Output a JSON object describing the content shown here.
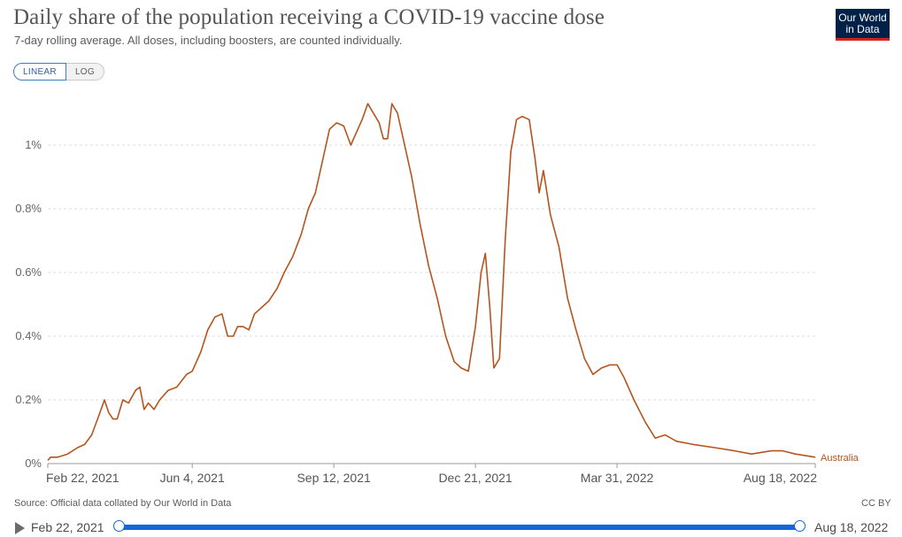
{
  "header": {
    "title": "Daily share of the population receiving a COVID-19 vaccine dose",
    "subtitle": "7-day rolling average. All doses, including boosters, are counted individually.",
    "logo_line1": "Our World",
    "logo_line2": "in Data"
  },
  "scale_toggle": {
    "linear_label": "LINEAR",
    "log_label": "LOG",
    "selected": "LINEAR"
  },
  "chart_data": {
    "type": "line",
    "x_ticks": [
      "Feb 22, 2021",
      "Jun 4, 2021",
      "Sep 12, 2021",
      "Dec 21, 2021",
      "Mar 31, 2022",
      "Aug 18, 2022"
    ],
    "y_ticks": [
      "0%",
      "0.2%",
      "0.4%",
      "0.6%",
      "0.8%",
      "1%"
    ],
    "ylim": [
      0,
      1.15
    ],
    "y_unit": "%",
    "grid": "horizontal dashed",
    "series": [
      {
        "name": "Australia",
        "color": "#b5541e",
        "points": [
          [
            "2021-02-22",
            0.01
          ],
          [
            "2021-02-24",
            0.02
          ],
          [
            "2021-03-01",
            0.02
          ],
          [
            "2021-03-08",
            0.03
          ],
          [
            "2021-03-15",
            0.05
          ],
          [
            "2021-03-20",
            0.06
          ],
          [
            "2021-03-25",
            0.09
          ],
          [
            "2021-03-30",
            0.15
          ],
          [
            "2021-04-03",
            0.2
          ],
          [
            "2021-04-06",
            0.16
          ],
          [
            "2021-04-09",
            0.14
          ],
          [
            "2021-04-12",
            0.14
          ],
          [
            "2021-04-16",
            0.2
          ],
          [
            "2021-04-20",
            0.19
          ],
          [
            "2021-04-25",
            0.23
          ],
          [
            "2021-04-28",
            0.24
          ],
          [
            "2021-05-01",
            0.17
          ],
          [
            "2021-05-04",
            0.19
          ],
          [
            "2021-05-08",
            0.17
          ],
          [
            "2021-05-12",
            0.2
          ],
          [
            "2021-05-18",
            0.23
          ],
          [
            "2021-05-24",
            0.24
          ],
          [
            "2021-05-31",
            0.28
          ],
          [
            "2021-06-04",
            0.29
          ],
          [
            "2021-06-10",
            0.35
          ],
          [
            "2021-06-15",
            0.42
          ],
          [
            "2021-06-20",
            0.46
          ],
          [
            "2021-06-25",
            0.47
          ],
          [
            "2021-06-29",
            0.4
          ],
          [
            "2021-07-03",
            0.4
          ],
          [
            "2021-07-06",
            0.43
          ],
          [
            "2021-07-10",
            0.43
          ],
          [
            "2021-07-14",
            0.42
          ],
          [
            "2021-07-18",
            0.47
          ],
          [
            "2021-07-23",
            0.49
          ],
          [
            "2021-07-28",
            0.51
          ],
          [
            "2021-08-03",
            0.55
          ],
          [
            "2021-08-08",
            0.6
          ],
          [
            "2021-08-14",
            0.65
          ],
          [
            "2021-08-20",
            0.72
          ],
          [
            "2021-08-25",
            0.8
          ],
          [
            "2021-08-30",
            0.85
          ],
          [
            "2021-09-04",
            0.95
          ],
          [
            "2021-09-09",
            1.05
          ],
          [
            "2021-09-14",
            1.07
          ],
          [
            "2021-09-19",
            1.06
          ],
          [
            "2021-09-24",
            1.0
          ],
          [
            "2021-09-28",
            1.04
          ],
          [
            "2021-10-02",
            1.08
          ],
          [
            "2021-10-06",
            1.13
          ],
          [
            "2021-10-10",
            1.1
          ],
          [
            "2021-10-14",
            1.07
          ],
          [
            "2021-10-17",
            1.02
          ],
          [
            "2021-10-20",
            1.02
          ],
          [
            "2021-10-23",
            1.13
          ],
          [
            "2021-10-27",
            1.1
          ],
          [
            "2021-11-01",
            1.0
          ],
          [
            "2021-11-06",
            0.9
          ],
          [
            "2021-11-12",
            0.75
          ],
          [
            "2021-11-18",
            0.62
          ],
          [
            "2021-11-24",
            0.52
          ],
          [
            "2021-11-30",
            0.4
          ],
          [
            "2021-12-06",
            0.32
          ],
          [
            "2021-12-11",
            0.3
          ],
          [
            "2021-12-16",
            0.29
          ],
          [
            "2021-12-21",
            0.43
          ],
          [
            "2021-12-25",
            0.6
          ],
          [
            "2021-12-28",
            0.66
          ],
          [
            "2021-12-31",
            0.5
          ],
          [
            "2022-01-03",
            0.3
          ],
          [
            "2022-01-07",
            0.33
          ],
          [
            "2022-01-11",
            0.7
          ],
          [
            "2022-01-15",
            0.98
          ],
          [
            "2022-01-19",
            1.08
          ],
          [
            "2022-01-23",
            1.09
          ],
          [
            "2022-01-28",
            1.08
          ],
          [
            "2022-02-01",
            0.96
          ],
          [
            "2022-02-04",
            0.85
          ],
          [
            "2022-02-07",
            0.92
          ],
          [
            "2022-02-12",
            0.78
          ],
          [
            "2022-02-18",
            0.68
          ],
          [
            "2022-02-24",
            0.52
          ],
          [
            "2022-03-02",
            0.42
          ],
          [
            "2022-03-08",
            0.33
          ],
          [
            "2022-03-14",
            0.28
          ],
          [
            "2022-03-20",
            0.3
          ],
          [
            "2022-03-26",
            0.31
          ],
          [
            "2022-03-31",
            0.31
          ],
          [
            "2022-04-05",
            0.27
          ],
          [
            "2022-04-12",
            0.2
          ],
          [
            "2022-04-20",
            0.13
          ],
          [
            "2022-04-27",
            0.08
          ],
          [
            "2022-05-04",
            0.09
          ],
          [
            "2022-05-12",
            0.07
          ],
          [
            "2022-05-24",
            0.06
          ],
          [
            "2022-06-08",
            0.05
          ],
          [
            "2022-06-22",
            0.04
          ],
          [
            "2022-07-04",
            0.03
          ],
          [
            "2022-07-18",
            0.04
          ],
          [
            "2022-07-26",
            0.04
          ],
          [
            "2022-08-04",
            0.03
          ],
          [
            "2022-08-18",
            0.02
          ]
        ]
      }
    ]
  },
  "footer": {
    "source": "Source: Official data collated by Our World in Data",
    "license": "CC BY"
  },
  "timeline": {
    "start_label": "Feb 22, 2021",
    "end_label": "Aug 18, 2022"
  }
}
